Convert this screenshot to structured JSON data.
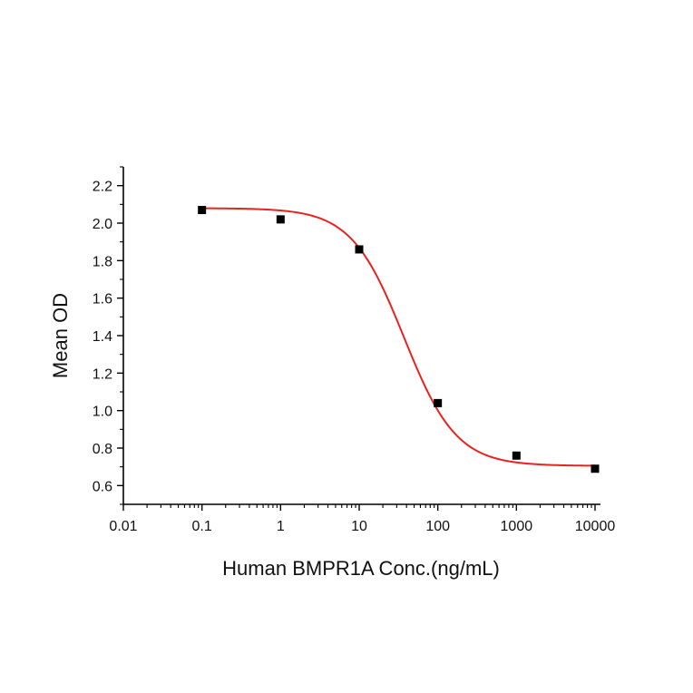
{
  "chart_data": {
    "type": "scatter",
    "xlabel": "Human BMPR1A Conc.(ng/mL)",
    "ylabel": "Mean OD",
    "x_scale": "log",
    "xlim": [
      0.01,
      10000
    ],
    "ylim": [
      0.5,
      2.3
    ],
    "x_ticks": [
      0.01,
      0.1,
      1,
      10,
      100,
      1000,
      10000
    ],
    "x_tick_labels": [
      "0.01",
      "0.1",
      "1",
      "10",
      "100",
      "1000",
      "10000"
    ],
    "y_ticks": [
      0.6,
      0.8,
      1.0,
      1.2,
      1.4,
      1.6,
      1.8,
      2.0,
      2.2
    ],
    "y_tick_labels": [
      "0.6",
      "0.8",
      "1.0",
      "1.2",
      "1.4",
      "1.6",
      "1.8",
      "2.0",
      "2.2"
    ],
    "grid": false,
    "series": [
      {
        "marker": "square",
        "color": "#000000",
        "points": [
          {
            "x": 0.1,
            "y": 2.07
          },
          {
            "x": 1,
            "y": 2.02
          },
          {
            "x": 10,
            "y": 1.86
          },
          {
            "x": 100,
            "y": 1.04
          },
          {
            "x": 1000,
            "y": 0.76
          },
          {
            "x": 10000,
            "y": 0.69
          }
        ]
      }
    ],
    "fit_curve": {
      "model": "four-parameter logistic",
      "color": "#e8231f",
      "top": 2.08,
      "bottom": 0.705,
      "ec50": 37,
      "hill_slope": 1.3,
      "x_range": [
        0.1,
        10000
      ]
    }
  }
}
